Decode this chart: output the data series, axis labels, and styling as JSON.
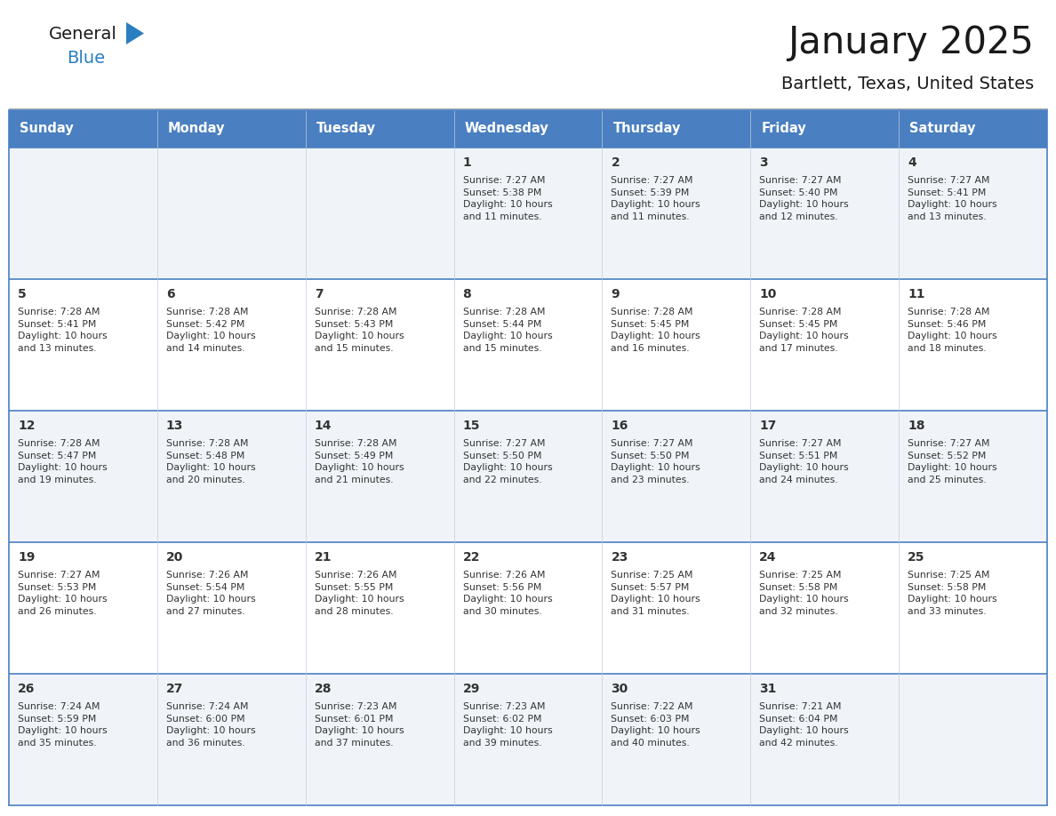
{
  "title": "January 2025",
  "subtitle": "Bartlett, Texas, United States",
  "days_of_week": [
    "Sunday",
    "Monday",
    "Tuesday",
    "Wednesday",
    "Thursday",
    "Friday",
    "Saturday"
  ],
  "header_bg": "#4a7fc1",
  "header_text_color": "#ffffff",
  "cell_bg_odd": "#f0f4f8",
  "cell_bg_even": "#ffffff",
  "cell_text_color": "#333333",
  "border_color": "#4a7fc1",
  "grid_line_color": "#c0cce0",
  "title_color": "#1a1a1a",
  "subtitle_color": "#1a1a1a",
  "logo_general_color": "#1a1a1a",
  "logo_blue_color": "#2a7fc1",
  "calendar": [
    [
      {
        "day": "",
        "info": ""
      },
      {
        "day": "",
        "info": ""
      },
      {
        "day": "",
        "info": ""
      },
      {
        "day": "1",
        "info": "Sunrise: 7:27 AM\nSunset: 5:38 PM\nDaylight: 10 hours\nand 11 minutes."
      },
      {
        "day": "2",
        "info": "Sunrise: 7:27 AM\nSunset: 5:39 PM\nDaylight: 10 hours\nand 11 minutes."
      },
      {
        "day": "3",
        "info": "Sunrise: 7:27 AM\nSunset: 5:40 PM\nDaylight: 10 hours\nand 12 minutes."
      },
      {
        "day": "4",
        "info": "Sunrise: 7:27 AM\nSunset: 5:41 PM\nDaylight: 10 hours\nand 13 minutes."
      }
    ],
    [
      {
        "day": "5",
        "info": "Sunrise: 7:28 AM\nSunset: 5:41 PM\nDaylight: 10 hours\nand 13 minutes."
      },
      {
        "day": "6",
        "info": "Sunrise: 7:28 AM\nSunset: 5:42 PM\nDaylight: 10 hours\nand 14 minutes."
      },
      {
        "day": "7",
        "info": "Sunrise: 7:28 AM\nSunset: 5:43 PM\nDaylight: 10 hours\nand 15 minutes."
      },
      {
        "day": "8",
        "info": "Sunrise: 7:28 AM\nSunset: 5:44 PM\nDaylight: 10 hours\nand 15 minutes."
      },
      {
        "day": "9",
        "info": "Sunrise: 7:28 AM\nSunset: 5:45 PM\nDaylight: 10 hours\nand 16 minutes."
      },
      {
        "day": "10",
        "info": "Sunrise: 7:28 AM\nSunset: 5:45 PM\nDaylight: 10 hours\nand 17 minutes."
      },
      {
        "day": "11",
        "info": "Sunrise: 7:28 AM\nSunset: 5:46 PM\nDaylight: 10 hours\nand 18 minutes."
      }
    ],
    [
      {
        "day": "12",
        "info": "Sunrise: 7:28 AM\nSunset: 5:47 PM\nDaylight: 10 hours\nand 19 minutes."
      },
      {
        "day": "13",
        "info": "Sunrise: 7:28 AM\nSunset: 5:48 PM\nDaylight: 10 hours\nand 20 minutes."
      },
      {
        "day": "14",
        "info": "Sunrise: 7:28 AM\nSunset: 5:49 PM\nDaylight: 10 hours\nand 21 minutes."
      },
      {
        "day": "15",
        "info": "Sunrise: 7:27 AM\nSunset: 5:50 PM\nDaylight: 10 hours\nand 22 minutes."
      },
      {
        "day": "16",
        "info": "Sunrise: 7:27 AM\nSunset: 5:50 PM\nDaylight: 10 hours\nand 23 minutes."
      },
      {
        "day": "17",
        "info": "Sunrise: 7:27 AM\nSunset: 5:51 PM\nDaylight: 10 hours\nand 24 minutes."
      },
      {
        "day": "18",
        "info": "Sunrise: 7:27 AM\nSunset: 5:52 PM\nDaylight: 10 hours\nand 25 minutes."
      }
    ],
    [
      {
        "day": "19",
        "info": "Sunrise: 7:27 AM\nSunset: 5:53 PM\nDaylight: 10 hours\nand 26 minutes."
      },
      {
        "day": "20",
        "info": "Sunrise: 7:26 AM\nSunset: 5:54 PM\nDaylight: 10 hours\nand 27 minutes."
      },
      {
        "day": "21",
        "info": "Sunrise: 7:26 AM\nSunset: 5:55 PM\nDaylight: 10 hours\nand 28 minutes."
      },
      {
        "day": "22",
        "info": "Sunrise: 7:26 AM\nSunset: 5:56 PM\nDaylight: 10 hours\nand 30 minutes."
      },
      {
        "day": "23",
        "info": "Sunrise: 7:25 AM\nSunset: 5:57 PM\nDaylight: 10 hours\nand 31 minutes."
      },
      {
        "day": "24",
        "info": "Sunrise: 7:25 AM\nSunset: 5:58 PM\nDaylight: 10 hours\nand 32 minutes."
      },
      {
        "day": "25",
        "info": "Sunrise: 7:25 AM\nSunset: 5:58 PM\nDaylight: 10 hours\nand 33 minutes."
      }
    ],
    [
      {
        "day": "26",
        "info": "Sunrise: 7:24 AM\nSunset: 5:59 PM\nDaylight: 10 hours\nand 35 minutes."
      },
      {
        "day": "27",
        "info": "Sunrise: 7:24 AM\nSunset: 6:00 PM\nDaylight: 10 hours\nand 36 minutes."
      },
      {
        "day": "28",
        "info": "Sunrise: 7:23 AM\nSunset: 6:01 PM\nDaylight: 10 hours\nand 37 minutes."
      },
      {
        "day": "29",
        "info": "Sunrise: 7:23 AM\nSunset: 6:02 PM\nDaylight: 10 hours\nand 39 minutes."
      },
      {
        "day": "30",
        "info": "Sunrise: 7:22 AM\nSunset: 6:03 PM\nDaylight: 10 hours\nand 40 minutes."
      },
      {
        "day": "31",
        "info": "Sunrise: 7:21 AM\nSunset: 6:04 PM\nDaylight: 10 hours\nand 42 minutes."
      },
      {
        "day": "",
        "info": ""
      }
    ]
  ]
}
